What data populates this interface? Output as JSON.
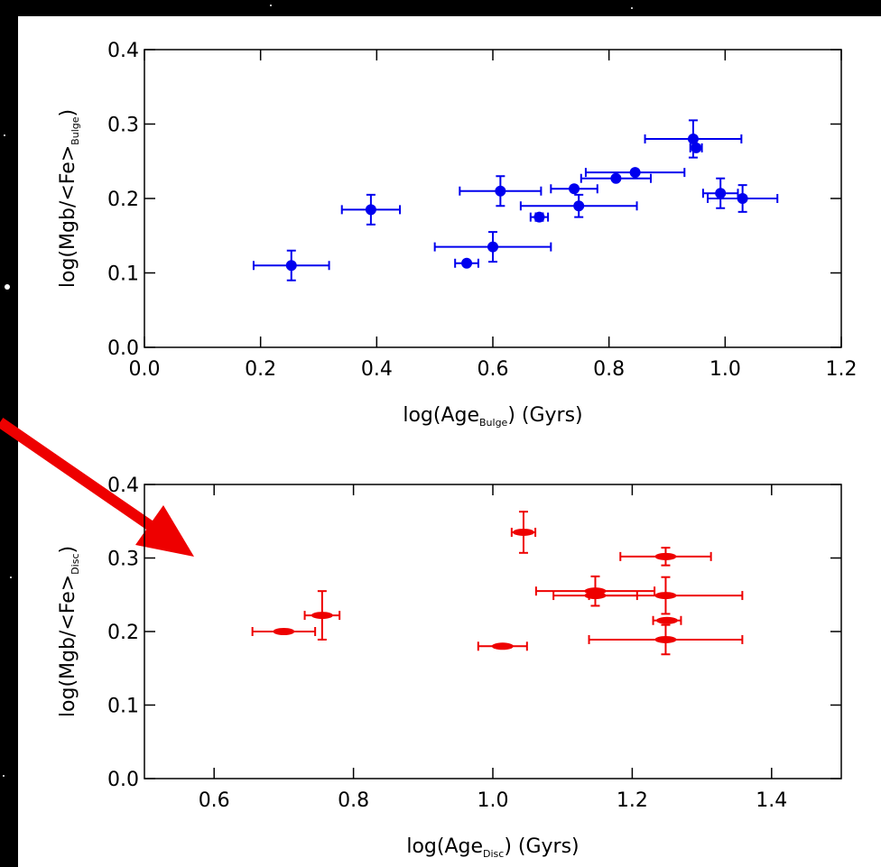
{
  "chart_data": [
    {
      "type": "scatter",
      "xlabel": "log(Age",
      "xlabel_sub": "Bulge",
      "xlabel_end": ")  (Gyrs)",
      "ylabel": "log(Mgb/<Fe>",
      "ylabel_sub": "Bulge",
      "ylabel_end": ")",
      "xlim": [
        0,
        1.2
      ],
      "ylim": [
        0,
        0.4
      ],
      "xticks": [
        {
          "value": 0,
          "label": "0.0"
        },
        0.2,
        0.4,
        0.6,
        0.8,
        {
          "value": 1,
          "label": "1.0"
        },
        1.2
      ],
      "yticks": [
        {
          "value": 0,
          "label": "0.0"
        },
        0.1,
        0.2,
        0.3,
        0.4
      ],
      "marker": "circle",
      "series": [
        {
          "color": "#0000ee",
          "x": [
            0.253,
            0.39,
            0.555,
            0.6,
            0.613,
            0.68,
            0.74,
            0.748,
            0.812,
            0.845,
            0.945,
            0.95,
            0.992,
            1.03
          ],
          "values": [
            0.11,
            0.185,
            0.113,
            0.135,
            0.21,
            0.175,
            0.213,
            0.19,
            0.227,
            0.235,
            0.28,
            0.268,
            0.207,
            0.2
          ],
          "xerr": [
            0.065,
            0.05,
            0.02,
            0.1,
            0.07,
            0.015,
            0.04,
            0.1,
            0.06,
            0.085,
            0.083,
            0.01,
            0.03,
            0.06
          ],
          "yerr": [
            0.02,
            0.02,
            0,
            0.02,
            0.02,
            0.005,
            0,
            0.015,
            0,
            0,
            0.025,
            0,
            0.02,
            0.018
          ]
        }
      ]
    },
    {
      "type": "scatter",
      "xlabel": "log(Age",
      "xlabel_sub": "Disc",
      "xlabel_end": ")  (Gyrs)",
      "ylabel": "log(Mgb/<Fe>",
      "ylabel_sub": "Disc",
      "ylabel_end": ")",
      "xlim": [
        0.5,
        1.5
      ],
      "ylim": [
        0,
        0.4
      ],
      "xticks": [
        0.6,
        0.8,
        {
          "value": 1,
          "label": "1.0"
        },
        1.2,
        1.4
      ],
      "yticks": [
        {
          "value": 0,
          "label": "0.0"
        },
        0.1,
        0.2,
        0.3,
        0.4
      ],
      "marker": "ellipse",
      "series": [
        {
          "color": "#ee0000",
          "x": [
            0.7,
            0.755,
            1.014,
            1.044,
            1.147,
            1.147,
            1.248,
            1.248,
            1.25,
            1.248
          ],
          "values": [
            0.2,
            0.222,
            0.18,
            0.335,
            0.255,
            0.249,
            0.302,
            0.249,
            0.215,
            0.189
          ],
          "xerr": [
            0.045,
            0.025,
            0.035,
            0.017,
            0.085,
            0.06,
            0.065,
            0.11,
            0.02,
            0.11
          ],
          "yerr": [
            0,
            0.033,
            0,
            0.028,
            0.02,
            0,
            0.012,
            0.025,
            0,
            0.02
          ]
        }
      ]
    }
  ]
}
